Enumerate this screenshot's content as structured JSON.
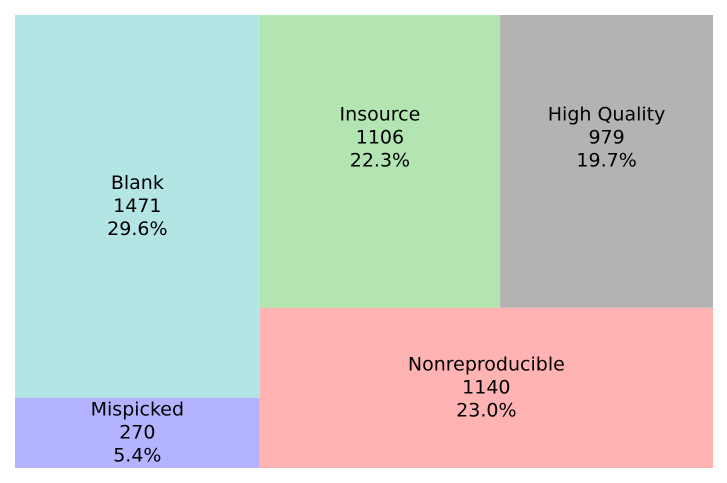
{
  "chart_data": {
    "type": "treemap",
    "title": "",
    "items": [
      {
        "label": "Blank",
        "value": "1471",
        "percent": "29.6%",
        "color": "#b3e5e5"
      },
      {
        "label": "Mispicked",
        "value": "270",
        "percent": "5.4%",
        "color": "#b3b3ff"
      },
      {
        "label": "Insource",
        "value": "1106",
        "percent": "22.3%",
        "color": "#b3e5b3"
      },
      {
        "label": "High Quality",
        "value": "979",
        "percent": "19.7%",
        "color": "#b3b3b3"
      },
      {
        "label": "Nonreproducible",
        "value": "1140",
        "percent": "23.0%",
        "color": "#ffb3b3"
      }
    ]
  }
}
